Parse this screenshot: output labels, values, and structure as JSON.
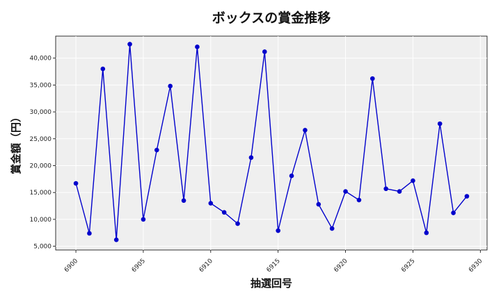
{
  "chart_data": {
    "type": "line",
    "title": "ボックスの賞金推移",
    "xlabel": "抽選回号",
    "ylabel": "賞金額（円）",
    "xlim": [
      6898.5,
      6930.5
    ],
    "ylim": [
      4300,
      44100
    ],
    "xticks": [
      6900,
      6905,
      6910,
      6915,
      6920,
      6925,
      6930
    ],
    "yticks": [
      5000,
      10000,
      15000,
      20000,
      25000,
      30000,
      35000,
      40000
    ],
    "ytick_labels": [
      "5,000",
      "10,000",
      "15,000",
      "20,000",
      "25,000",
      "30,000",
      "35,000",
      "40,000"
    ],
    "grid": true,
    "series": [
      {
        "color": "#0000cc",
        "marker": "circle",
        "x": [
          6900,
          6901,
          6902,
          6903,
          6904,
          6905,
          6906,
          6907,
          6908,
          6909,
          6910,
          6911,
          6912,
          6913,
          6914,
          6915,
          6916,
          6917,
          6918,
          6919,
          6920,
          6921,
          6922,
          6923,
          6924,
          6925,
          6926,
          6927,
          6928,
          6929
        ],
        "y": [
          16700,
          7400,
          38000,
          6200,
          42600,
          10000,
          22900,
          34800,
          13500,
          42100,
          13000,
          11300,
          9200,
          21500,
          41200,
          7900,
          18100,
          26600,
          12800,
          8300,
          15200,
          13600,
          36200,
          15700,
          15200,
          17200,
          7500,
          27800,
          11200,
          14300
        ]
      }
    ]
  }
}
